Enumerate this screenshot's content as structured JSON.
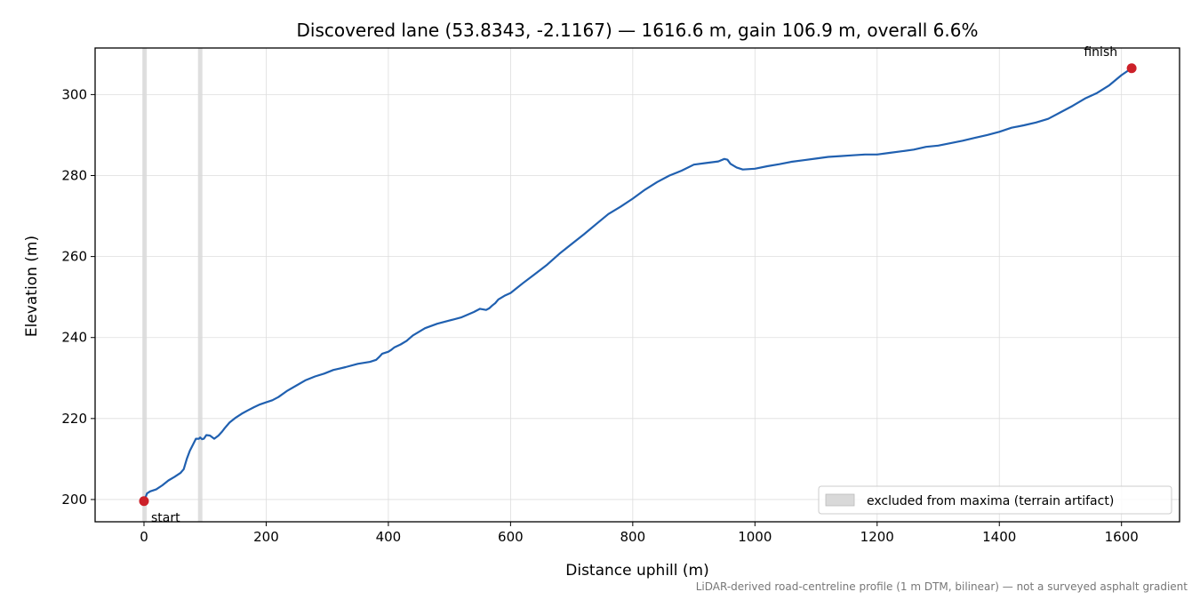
{
  "chart_data": {
    "type": "line",
    "title": "Discovered lane (53.8343, -2.1167) — 1616.6 m, gain 106.9 m, overall 6.6%",
    "xlabel": "Distance uphill (m)",
    "ylabel": "Elevation (m)",
    "xlim": [
      -80,
      1695
    ],
    "ylim": [
      194.5,
      311.5
    ],
    "xticks": [
      0,
      200,
      400,
      600,
      800,
      1000,
      1200,
      1400,
      1600
    ],
    "yticks": [
      200,
      220,
      240,
      260,
      280,
      300
    ],
    "grid": true,
    "legend_position": "lower-right",
    "legend": [
      {
        "label": "excluded from maxima (terrain artifact)",
        "color": "#d9d9d9"
      }
    ],
    "excluded_x": [
      1,
      92
    ],
    "footnote": "LiDAR-derived road-centreline profile (1 m DTM, bilinear) — not a surveyed asphalt gradient",
    "line_color": "#2060b0",
    "marker_color": "#cc2029",
    "points": [
      {
        "label": "start",
        "x": 0,
        "y": 199.6
      },
      {
        "label": "finish",
        "x": 1616.6,
        "y": 306.5
      }
    ],
    "series": [
      {
        "x": [
          0,
          5,
          10,
          20,
          30,
          40,
          50,
          60,
          65,
          70,
          75,
          80,
          85,
          90,
          92,
          95,
          98,
          102,
          108,
          115,
          122,
          128,
          132,
          140,
          150,
          160,
          170,
          180,
          190,
          200,
          210,
          220,
          235,
          250,
          265,
          280,
          295,
          310,
          330,
          350,
          370,
          380,
          385,
          390,
          400,
          405,
          410,
          420,
          430,
          440,
          460,
          480,
          500,
          520,
          540,
          550,
          560,
          565,
          570,
          575,
          580,
          590,
          600,
          610,
          620,
          640,
          660,
          680,
          700,
          720,
          740,
          760,
          780,
          800,
          820,
          840,
          860,
          880,
          900,
          920,
          940,
          950,
          955,
          960,
          970,
          980,
          1000,
          1020,
          1040,
          1060,
          1080,
          1100,
          1120,
          1140,
          1160,
          1180,
          1200,
          1220,
          1240,
          1260,
          1280,
          1300,
          1320,
          1340,
          1360,
          1380,
          1400,
          1420,
          1440,
          1460,
          1480,
          1500,
          1520,
          1540,
          1560,
          1580,
          1600,
          1616.6
        ],
        "y": [
          199.6,
          201.5,
          202.0,
          202.5,
          203.5,
          204.7,
          205.6,
          206.6,
          207.5,
          210.0,
          212.0,
          213.5,
          215.0,
          215.0,
          215.3,
          214.9,
          215.0,
          215.9,
          215.8,
          215.0,
          215.8,
          216.8,
          217.6,
          219.0,
          220.2,
          221.2,
          222.0,
          222.8,
          223.5,
          224.0,
          224.5,
          225.3,
          226.9,
          228.2,
          229.5,
          230.4,
          231.1,
          232.0,
          232.7,
          233.5,
          234.0,
          234.5,
          235.2,
          236.0,
          236.5,
          237.0,
          237.6,
          238.3,
          239.2,
          240.5,
          242.3,
          243.4,
          244.2,
          245.0,
          246.3,
          247.1,
          246.8,
          247.2,
          247.9,
          248.5,
          249.4,
          250.3,
          251.0,
          252.2,
          253.4,
          255.7,
          258.0,
          260.7,
          263.1,
          265.5,
          268.0,
          270.5,
          272.3,
          274.3,
          276.5,
          278.4,
          280.0,
          281.2,
          282.7,
          283.1,
          283.5,
          284.1,
          283.9,
          282.9,
          282.0,
          281.5,
          281.7,
          282.3,
          282.8,
          283.4,
          283.8,
          284.2,
          284.6,
          284.8,
          285.0,
          285.2,
          285.2,
          285.6,
          286.0,
          286.4,
          287.1,
          287.4,
          288.0,
          288.6,
          289.3,
          290.0,
          290.8,
          291.8,
          292.4,
          293.1,
          294.0,
          295.6,
          297.2,
          299.0,
          300.4,
          302.3,
          304.8,
          306.5
        ]
      }
    ]
  }
}
